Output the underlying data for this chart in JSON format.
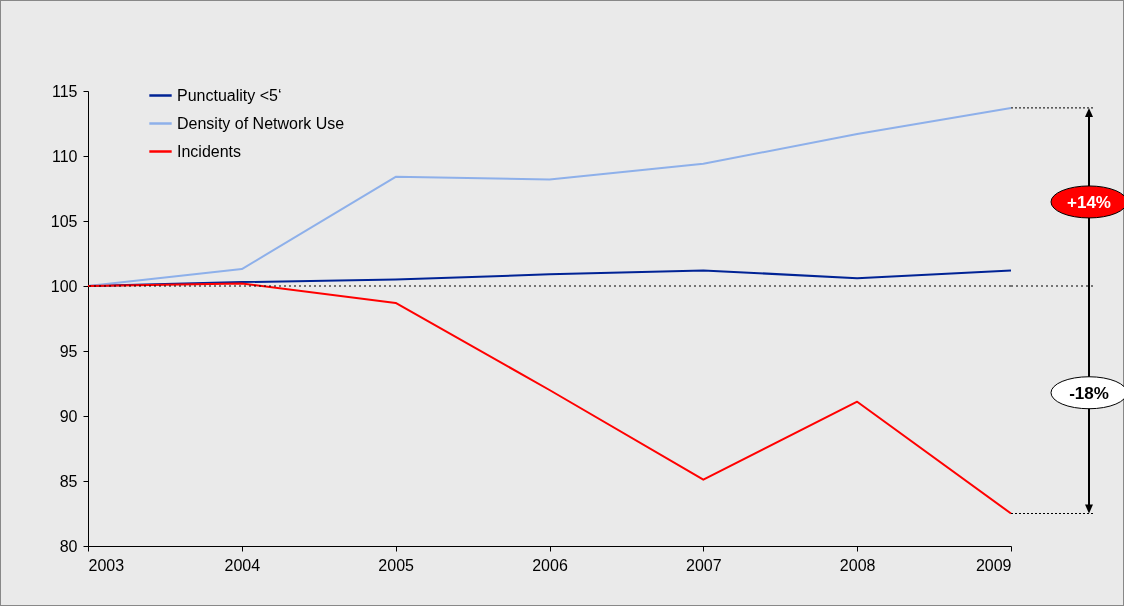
{
  "chart_data": {
    "type": "line",
    "x": [
      2003,
      2004,
      2005,
      2006,
      2007,
      2008,
      2009
    ],
    "series": [
      {
        "name": "Punctuality <5‘",
        "color": "#002395",
        "values": [
          100,
          100.3,
          100.5,
          100.9,
          101.2,
          100.6,
          101.2
        ]
      },
      {
        "name": "Density of Network Use",
        "color": "#8eb0ea",
        "values": [
          100,
          101.3,
          108.4,
          108.2,
          109.4,
          111.7,
          113.7
        ]
      },
      {
        "name": "Incidents",
        "color": "#ff0000",
        "values": [
          100,
          100.2,
          98.7,
          92.0,
          85.1,
          91.1,
          82.5
        ]
      }
    ],
    "xlim": [
      2003,
      2009
    ],
    "xticks": [
      2003,
      2004,
      2005,
      2006,
      2007,
      2008,
      2009
    ],
    "ylim": [
      80,
      115
    ],
    "yticks": [
      80,
      85,
      90,
      95,
      100,
      105,
      110,
      115
    ],
    "ref_lines": [
      {
        "axis": "y",
        "value": 100,
        "color": "#000000",
        "line_style": "dotted"
      }
    ],
    "annotations": [
      "+14%",
      "-18%"
    ],
    "legend": "top left",
    "grid": false,
    "marker": "none",
    "line_style": "solid"
  }
}
